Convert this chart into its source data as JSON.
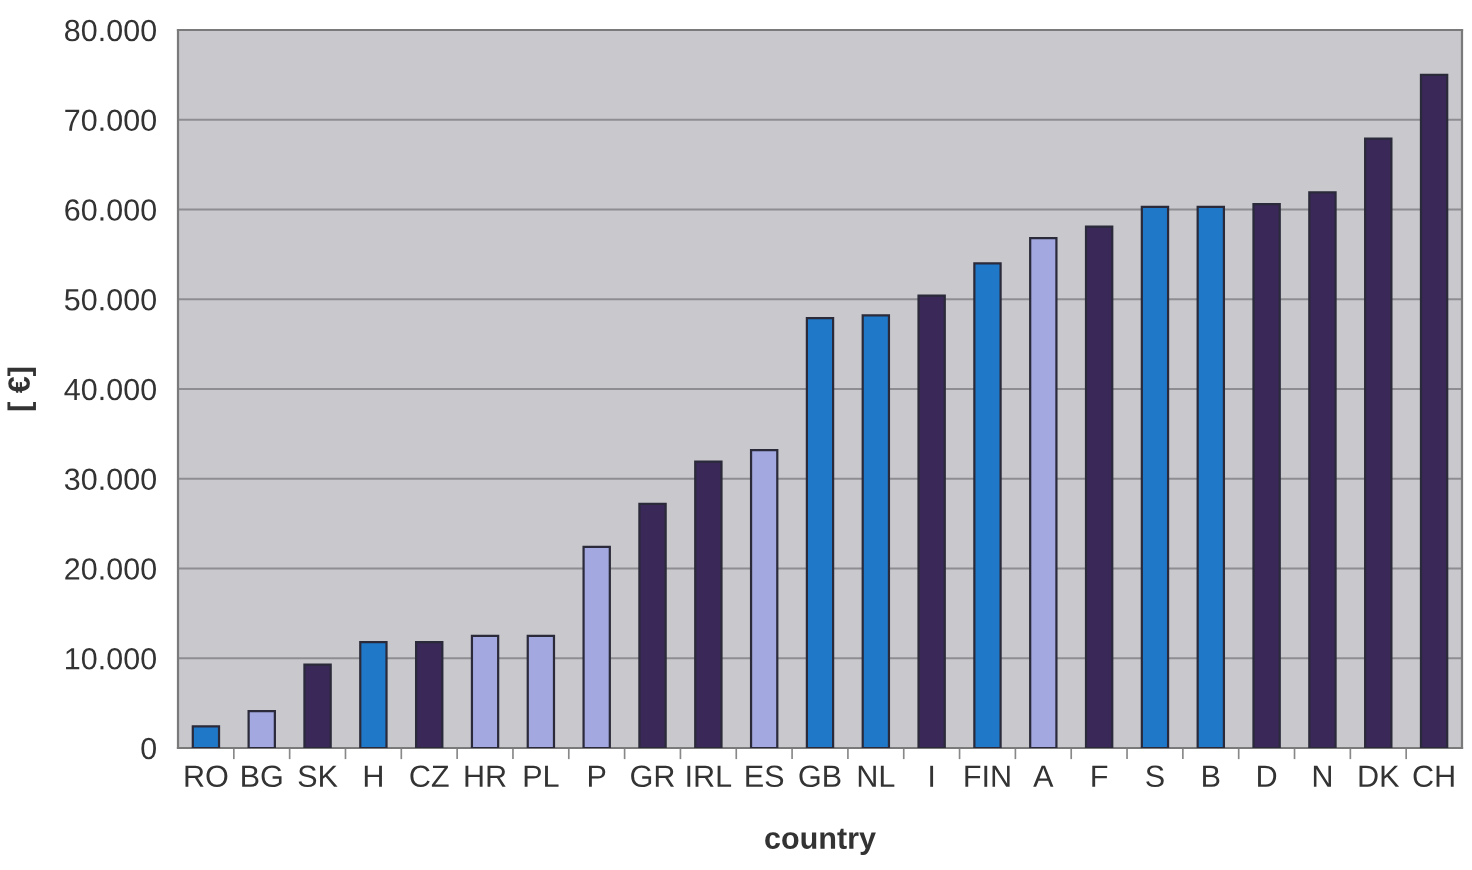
{
  "chart_data": {
    "type": "bar",
    "xlabel": "country",
    "ylabel": "[ €]",
    "categories": [
      "RO",
      "BG",
      "SK",
      "H",
      "CZ",
      "HR",
      "PL",
      "P",
      "GR",
      "IRL",
      "ES",
      "GB",
      "NL",
      "I",
      "FIN",
      "A",
      "F",
      "S",
      "B",
      "D",
      "N",
      "DK",
      "CH"
    ],
    "values": [
      2400,
      4100,
      9300,
      11800,
      11800,
      12500,
      12500,
      22400,
      27200,
      31900,
      33200,
      47900,
      48200,
      50400,
      54000,
      56800,
      58100,
      60300,
      60300,
      60600,
      61900,
      67900,
      75000
    ],
    "colors": [
      "#1f78c8",
      "#a3a8e0",
      "#3a2858",
      "#1f78c8",
      "#3a2858",
      "#a3a8e0",
      "#a3a8e0",
      "#a3a8e0",
      "#3a2858",
      "#3a2858",
      "#a3a8e0",
      "#1f78c8",
      "#1f78c8",
      "#3a2858",
      "#1f78c8",
      "#a3a8e0",
      "#3a2858",
      "#1f78c8",
      "#1f78c8",
      "#3a2858",
      "#3a2858",
      "#3a2858",
      "#3a2858"
    ],
    "ylim": [
      0,
      80000
    ],
    "yticks": [
      {
        "value": 0,
        "label": "0"
      },
      {
        "value": 10000,
        "label": "10.000"
      },
      {
        "value": 20000,
        "label": "20.000"
      },
      {
        "value": 30000,
        "label": "30.000"
      },
      {
        "value": 40000,
        "label": "40.000"
      },
      {
        "value": 50000,
        "label": "50.000"
      },
      {
        "value": 60000,
        "label": "60.000"
      },
      {
        "value": 70000,
        "label": "70.000"
      },
      {
        "value": 80000,
        "label": "80.000"
      }
    ],
    "grid": "y"
  }
}
